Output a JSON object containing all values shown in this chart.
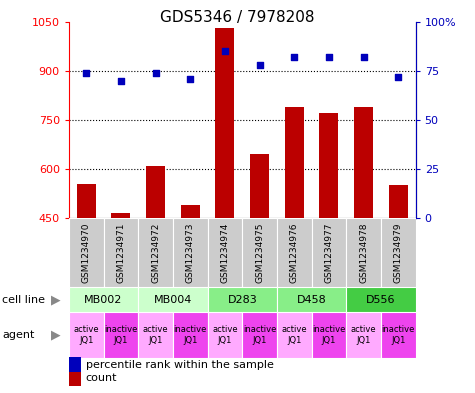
{
  "title": "GDS5346 / 7978208",
  "samples": [
    "GSM1234970",
    "GSM1234971",
    "GSM1234972",
    "GSM1234973",
    "GSM1234974",
    "GSM1234975",
    "GSM1234976",
    "GSM1234977",
    "GSM1234978",
    "GSM1234979"
  ],
  "counts": [
    555,
    465,
    610,
    490,
    1030,
    645,
    790,
    770,
    790,
    550
  ],
  "percentiles": [
    74,
    70,
    74,
    71,
    85,
    78,
    82,
    82,
    82,
    72
  ],
  "ylim_left": [
    450,
    1050
  ],
  "ylim_right": [
    0,
    100
  ],
  "yticks_left": [
    450,
    600,
    750,
    900,
    1050
  ],
  "yticks_right": [
    0,
    25,
    50,
    75,
    100
  ],
  "cell_lines": [
    {
      "label": "MB002",
      "span": [
        0,
        2
      ],
      "color": "#ccffcc"
    },
    {
      "label": "MB004",
      "span": [
        2,
        4
      ],
      "color": "#ccffcc"
    },
    {
      "label": "D283",
      "span": [
        4,
        6
      ],
      "color": "#88ee88"
    },
    {
      "label": "D458",
      "span": [
        6,
        8
      ],
      "color": "#88ee88"
    },
    {
      "label": "D556",
      "span": [
        8,
        10
      ],
      "color": "#44cc44"
    }
  ],
  "agents": [
    {
      "label": "active\nJQ1",
      "color": "#ffaaff"
    },
    {
      "label": "inactive\nJQ1",
      "color": "#ee44ee"
    },
    {
      "label": "active\nJQ1",
      "color": "#ffaaff"
    },
    {
      "label": "inactive\nJQ1",
      "color": "#ee44ee"
    },
    {
      "label": "active\nJQ1",
      "color": "#ffaaff"
    },
    {
      "label": "inactive\nJQ1",
      "color": "#ee44ee"
    },
    {
      "label": "active\nJQ1",
      "color": "#ffaaff"
    },
    {
      "label": "inactive\nJQ1",
      "color": "#ee44ee"
    },
    {
      "label": "active\nJQ1",
      "color": "#ffaaff"
    },
    {
      "label": "inactive\nJQ1",
      "color": "#ee44ee"
    }
  ],
  "bar_color": "#bb0000",
  "dot_color": "#0000bb",
  "bar_bottom": 450,
  "sample_bg_color": "#cccccc",
  "legend_items": [
    {
      "color": "#bb0000",
      "label": "count"
    },
    {
      "color": "#0000bb",
      "label": "percentile rank within the sample"
    }
  ],
  "fig_width": 4.75,
  "fig_height": 3.93,
  "dpi": 100
}
